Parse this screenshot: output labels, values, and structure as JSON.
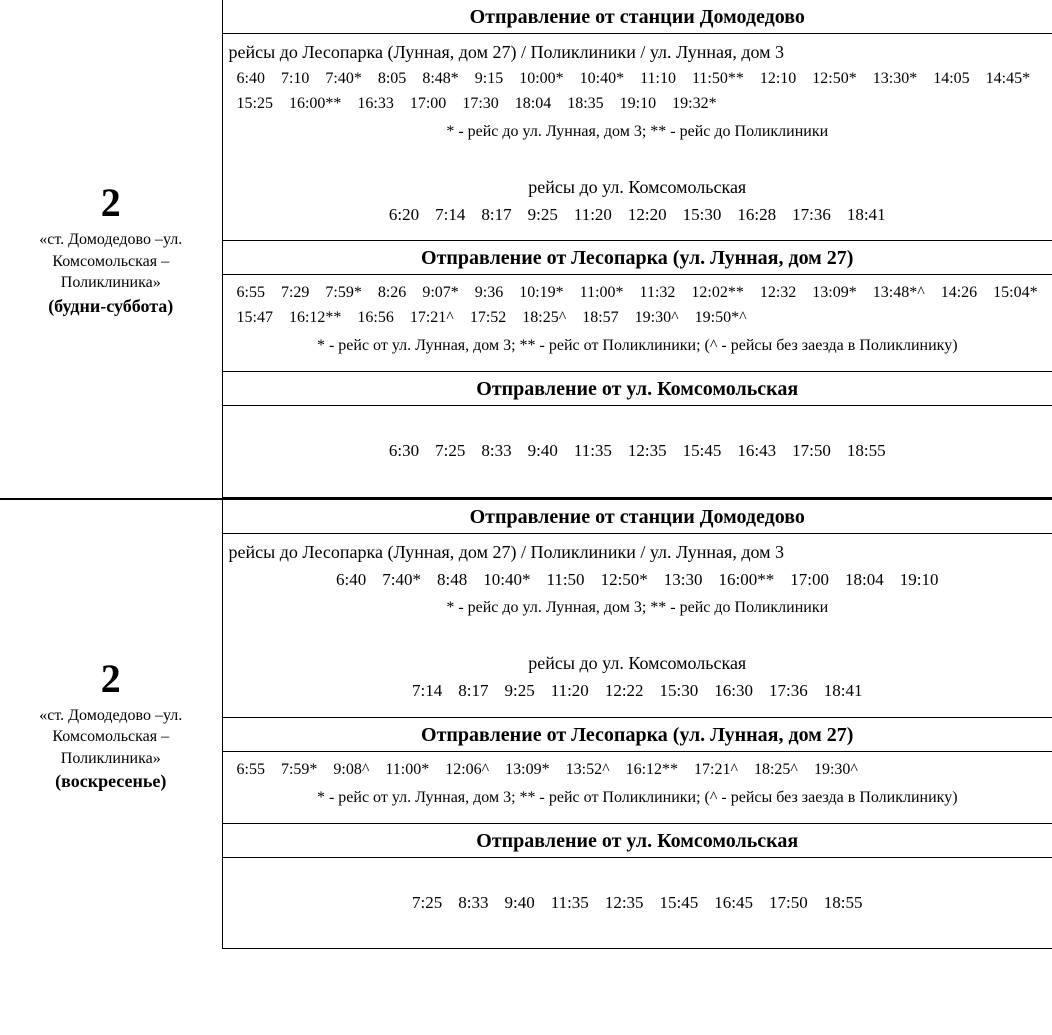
{
  "blocks": [
    {
      "route_number": "2",
      "route_name": "«ст. Домодедово –ул. Комсомольская – Поликлиника»",
      "days": "(будни-суббота)",
      "sections": [
        {
          "header": "Отправление от станции Домодедово",
          "groups": [
            {
              "subheader": "рейсы до Лесопарка (Лунная, дом 27) / Поликлиники / ул. Лунная, дом 3",
              "subheader_align": "left",
              "times": [
                "6:40",
                "7:10",
                "7:40*",
                "8:05",
                "8:48*",
                "9:15",
                "10:00*",
                "10:40*",
                "11:10",
                "11:50**",
                "12:10",
                "12:50*",
                "13:30*",
                "14:05",
                "14:45*",
                "15:25",
                "16:00**",
                "16:33",
                "17:00",
                "17:30",
                "18:04",
                "18:35",
                "19:10",
                "19:32*"
              ],
              "times_align": "left",
              "note": "* -  рейс до ул. Лунная, дом 3; ** - рейс до Поликлиники"
            },
            {
              "subheader": "рейсы до ул. Комсомольская",
              "subheader_align": "center",
              "times": [
                "6:20",
                "7:14",
                "8:17",
                "9:25",
                "11:20",
                "12:20",
                "15:30",
                "16:28",
                "17:36",
                "18:41"
              ],
              "times_align": "center",
              "note": ""
            }
          ]
        },
        {
          "header": "Отправление от Лесопарка (ул. Лунная, дом 27)",
          "groups": [
            {
              "subheader": "",
              "times": [
                "6:55",
                "7:29",
                "7:59*",
                "8:26",
                "9:07*",
                "9:36",
                "10:19*",
                "11:00*",
                "11:32",
                "12:02**",
                "12:32",
                "13:09*",
                "13:48*^",
                "14:26",
                "15:04*",
                "15:47",
                "16:12**",
                "16:56",
                "17:21^",
                "17:52",
                "18:25^",
                "18:57",
                "19:30^",
                "19:50*^"
              ],
              "times_align": "left",
              "note": "* - рейс от ул. Лунная, дом 3;    ** - рейс от Поликлиники;    (^ - рейсы без заезда в Поликлинику)"
            }
          ]
        },
        {
          "header": "Отправление от ул. Комсомольская",
          "groups": [
            {
              "subheader": "",
              "times": [
                "6:30",
                "7:25",
                "8:33",
                "9:40",
                "11:35",
                "12:35",
                "15:45",
                "16:43",
                "17:50",
                "18:55"
              ],
              "times_align": "center",
              "note": ""
            }
          ],
          "extra_pad": true
        }
      ]
    },
    {
      "route_number": "2",
      "route_name": "«ст. Домодедово –ул. Комсомольская – Поликлиника»",
      "days": "(воскресенье)",
      "sections": [
        {
          "header": "Отправление от станции Домодедово",
          "groups": [
            {
              "subheader": "рейсы до Лесопарка (Лунная, дом 27) / Поликлиники / ул. Лунная, дом 3",
              "subheader_align": "left",
              "times": [
                "6:40",
                "7:40*",
                "8:48",
                "10:40*",
                "11:50",
                "12:50*",
                "13:30",
                "16:00**",
                "17:00",
                "18:04",
                "19:10"
              ],
              "times_align": "center",
              "note": "* -  рейс до ул. Лунная, дом 3; ** - рейс до Поликлиники"
            },
            {
              "subheader": "рейсы до ул. Комсомольская",
              "subheader_align": "center",
              "times": [
                "7:14",
                "8:17",
                "9:25",
                "11:20",
                "12:22",
                "15:30",
                "16:30",
                "17:36",
                "18:41"
              ],
              "times_align": "center",
              "note": ""
            }
          ]
        },
        {
          "header": "Отправление от Лесопарка (ул. Лунная, дом 27)",
          "groups": [
            {
              "subheader": "",
              "times": [
                "6:55",
                "7:59*",
                "9:08^",
                "11:00*",
                "12:06^",
                "13:09*",
                "13:52^",
                "16:12**",
                "17:21^",
                "18:25^",
                "19:30^"
              ],
              "times_align": "left",
              "note": "* - рейс от ул. Лунная, дом 3;    ** - рейс от Поликлиники;    (^ - рейсы без заезда в Поликлинику)"
            }
          ]
        },
        {
          "header": "Отправление от ул. Комсомольская",
          "groups": [
            {
              "subheader": "",
              "times": [
                "7:25",
                "8:33",
                "9:40",
                "11:35",
                "12:35",
                "15:45",
                "16:45",
                "17:50",
                "18:55"
              ],
              "times_align": "center",
              "note": ""
            }
          ],
          "extra_pad": true
        }
      ]
    }
  ]
}
